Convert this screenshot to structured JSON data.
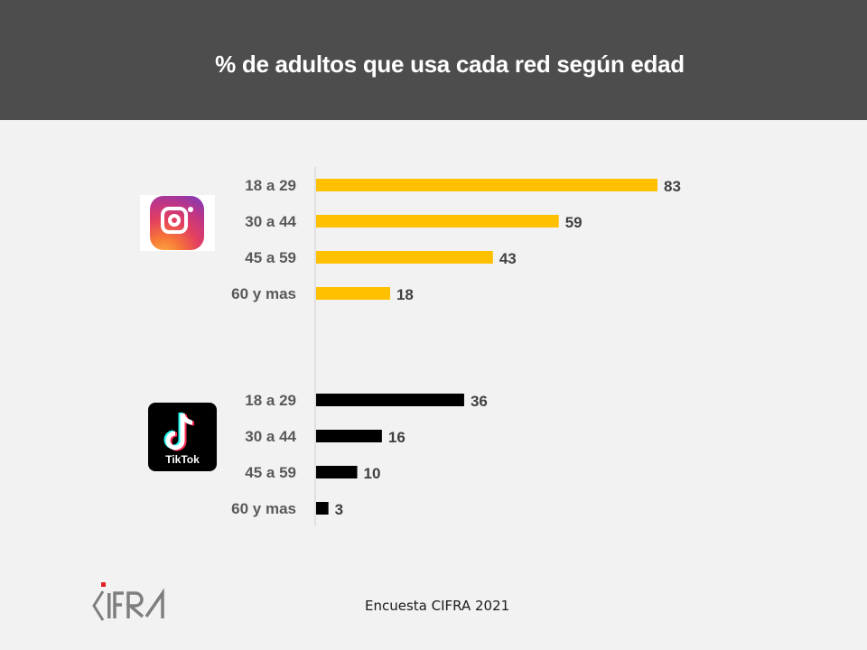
{
  "header": {
    "title": "% de adultos que usa cada red según edad"
  },
  "footer": {
    "source": "Encuesta CIFRA  2021",
    "logo_text": "CIFRA"
  },
  "icons": {
    "instagram": "instagram-logo-icon",
    "tiktok": "tiktok-logo-icon",
    "tiktok_label": "TikTok"
  },
  "colors": {
    "instagram": "#ffc000",
    "tiktok": "#000000",
    "header_bg": "#4d4d4d",
    "background": "#f2f2f2"
  },
  "chart_data": {
    "type": "bar",
    "orientation": "horizontal",
    "title": "% de adultos que usa cada red según edad",
    "xlabel": "",
    "ylabel": "",
    "xlim": [
      0,
      100
    ],
    "grid": false,
    "legend": "none (platform logos beside groups)",
    "groups": [
      {
        "name": "Instagram",
        "color": "#ffc000",
        "categories": [
          "18 a 29",
          "30 a 44",
          "45 a 59",
          "60 y mas"
        ],
        "values": [
          83,
          59,
          43,
          18
        ]
      },
      {
        "name": "TikTok",
        "color": "#000000",
        "categories": [
          "18 a 29",
          "30 a 44",
          "45 a 59",
          "60 y mas"
        ],
        "values": [
          36,
          16,
          10,
          3
        ]
      }
    ]
  }
}
